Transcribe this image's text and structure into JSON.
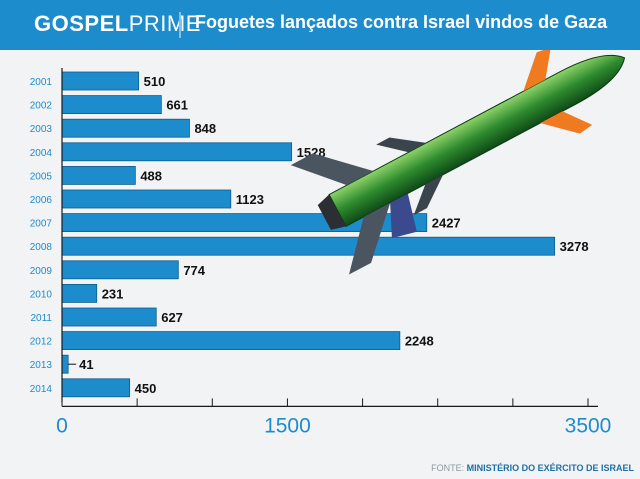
{
  "header": {
    "brand_bold": "GOSPEL",
    "brand_light": "PRIME",
    "title": "Foguetes lançados contra Israel vindos de Gaza"
  },
  "source": {
    "label": "FONTE:",
    "value": "MINISTÉRIO DO EXÉRCITO DE ISRAEL"
  },
  "colors": {
    "header": "#1d8ccd",
    "bar": "#1d8ccd",
    "bar_border": "#0d5d8c",
    "axis_text": "#1d8ccd",
    "value_text": "#111111"
  },
  "chart_data": {
    "type": "bar",
    "orientation": "horizontal",
    "categories": [
      "2001",
      "2002",
      "2003",
      "2004",
      "2005",
      "2006",
      "2007",
      "2008",
      "2009",
      "2010",
      "2011",
      "2012",
      "2013",
      "2014"
    ],
    "values": [
      510,
      661,
      848,
      1528,
      488,
      1123,
      2427,
      3278,
      774,
      231,
      627,
      2248,
      41,
      450
    ],
    "xlim": [
      0,
      3500
    ],
    "xticks": [
      0,
      1500,
      3500
    ],
    "grid": false,
    "legend": "none"
  }
}
